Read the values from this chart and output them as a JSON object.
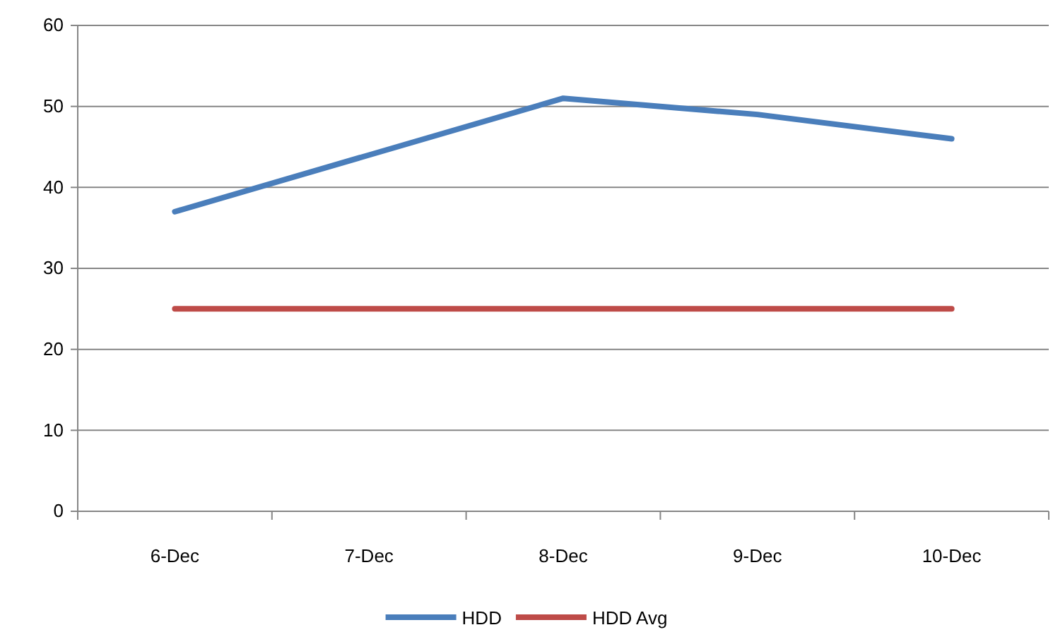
{
  "chart_data": {
    "type": "line",
    "categories": [
      "6-Dec",
      "7-Dec",
      "8-Dec",
      "9-Dec",
      "10-Dec"
    ],
    "series": [
      {
        "name": "HDD",
        "color": "#4a7ebb",
        "values": [
          37,
          44,
          51,
          49,
          46
        ]
      },
      {
        "name": "HDD Avg",
        "color": "#be4b48",
        "values": [
          25,
          25,
          25,
          25,
          25
        ]
      }
    ],
    "ylim": [
      0,
      60
    ],
    "yticks": [
      0,
      10,
      20,
      30,
      40,
      50,
      60
    ],
    "grid": "y",
    "legend": "bottom",
    "marker": "none",
    "line_style": "solid"
  }
}
